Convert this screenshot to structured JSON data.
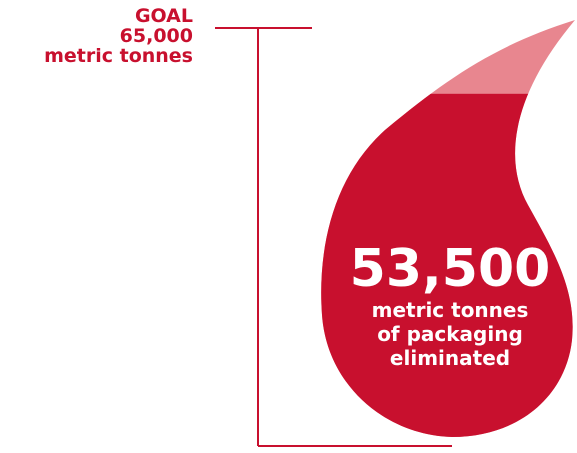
{
  "colors": {
    "fill": "#c8102e",
    "remaining": "#e8868f",
    "line": "#c8102e",
    "text_on_fill": "#ffffff"
  },
  "goal": {
    "line1": "GOAL",
    "line2": "65,000",
    "line3": "metric tonnes"
  },
  "achieved": {
    "value": "53,500",
    "caption_line1": "metric tonnes",
    "caption_line2": "of packaging",
    "caption_line3": "eliminated"
  },
  "chart_data": {
    "type": "bar",
    "categories": [
      "eliminated"
    ],
    "values": [
      53500
    ],
    "goal": 65000,
    "unit": "metric tonnes",
    "ylim": [
      0,
      65000
    ],
    "title": "",
    "xlabel": "",
    "ylabel": ""
  }
}
